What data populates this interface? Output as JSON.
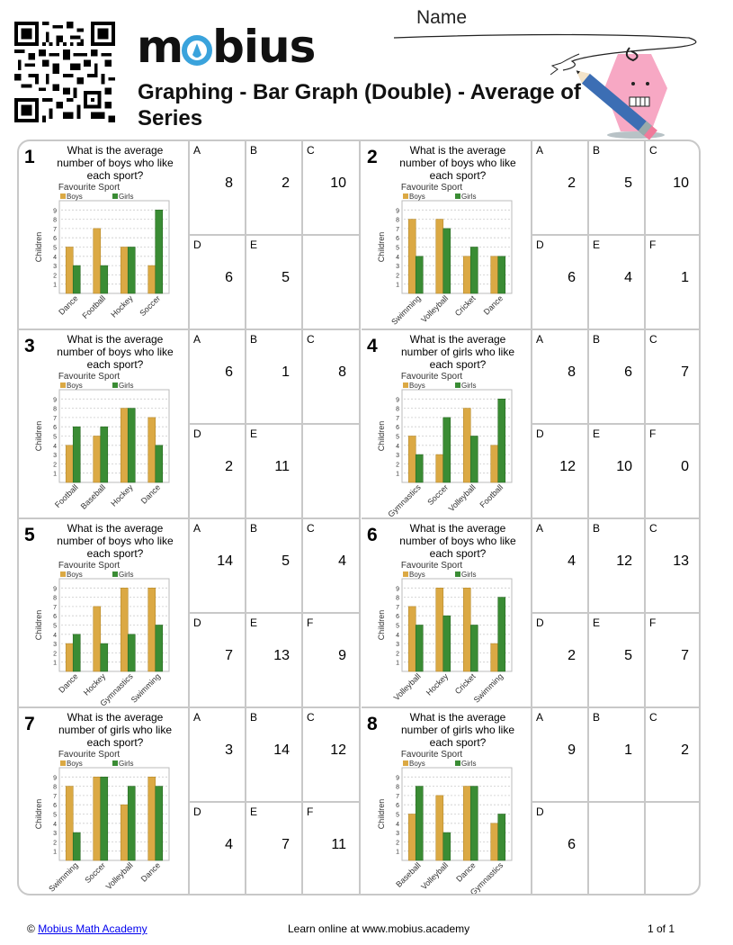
{
  "header": {
    "logo": "mobius",
    "title": "Graphing - Bar Graph (Double) - Average of Series",
    "name_label": "Name"
  },
  "colors": {
    "boys": "#dba944",
    "girls": "#3a8c34",
    "border": "#c8c8c8",
    "logo_accent": "#3aa3dc"
  },
  "legend": {
    "title": "Favourite Sport",
    "boys": "Boys",
    "girls": "Girls",
    "ylabel": "Children",
    "yticks": [
      "1",
      "2",
      "3",
      "4",
      "5",
      "6",
      "7",
      "8",
      "9"
    ]
  },
  "questions": [
    {
      "number": "1",
      "text": "What is the average number of boys who like each sport?",
      "answers": [
        {
          "letter": "A",
          "value": "8"
        },
        {
          "letter": "B",
          "value": "2"
        },
        {
          "letter": "C",
          "value": "10"
        },
        {
          "letter": "D",
          "value": "6"
        },
        {
          "letter": "E",
          "value": "5"
        },
        {
          "letter": "",
          "value": ""
        }
      ]
    },
    {
      "number": "2",
      "text": "What is the average number of boys who like each sport?",
      "answers": [
        {
          "letter": "A",
          "value": "2"
        },
        {
          "letter": "B",
          "value": "5"
        },
        {
          "letter": "C",
          "value": "10"
        },
        {
          "letter": "D",
          "value": "6"
        },
        {
          "letter": "E",
          "value": "4"
        },
        {
          "letter": "F",
          "value": "1"
        }
      ]
    },
    {
      "number": "3",
      "text": "What is the average number of boys who like each sport?",
      "answers": [
        {
          "letter": "A",
          "value": "6"
        },
        {
          "letter": "B",
          "value": "1"
        },
        {
          "letter": "C",
          "value": "8"
        },
        {
          "letter": "D",
          "value": "2"
        },
        {
          "letter": "E",
          "value": "11"
        },
        {
          "letter": "",
          "value": ""
        }
      ]
    },
    {
      "number": "4",
      "text": "What is the average number of girls who like each sport?",
      "answers": [
        {
          "letter": "A",
          "value": "8"
        },
        {
          "letter": "B",
          "value": "6"
        },
        {
          "letter": "C",
          "value": "7"
        },
        {
          "letter": "D",
          "value": "12"
        },
        {
          "letter": "E",
          "value": "10"
        },
        {
          "letter": "F",
          "value": "0"
        }
      ]
    },
    {
      "number": "5",
      "text": "What is the average number of boys who like each sport?",
      "answers": [
        {
          "letter": "A",
          "value": "14"
        },
        {
          "letter": "B",
          "value": "5"
        },
        {
          "letter": "C",
          "value": "4"
        },
        {
          "letter": "D",
          "value": "7"
        },
        {
          "letter": "E",
          "value": "13"
        },
        {
          "letter": "F",
          "value": "9"
        }
      ]
    },
    {
      "number": "6",
      "text": "What is the average number of boys who like each sport?",
      "answers": [
        {
          "letter": "A",
          "value": "4"
        },
        {
          "letter": "B",
          "value": "12"
        },
        {
          "letter": "C",
          "value": "13"
        },
        {
          "letter": "D",
          "value": "2"
        },
        {
          "letter": "E",
          "value": "5"
        },
        {
          "letter": "F",
          "value": "7"
        }
      ]
    },
    {
      "number": "7",
      "text": "What is the average number of girls who like each sport?",
      "answers": [
        {
          "letter": "A",
          "value": "3"
        },
        {
          "letter": "B",
          "value": "14"
        },
        {
          "letter": "C",
          "value": "12"
        },
        {
          "letter": "D",
          "value": "4"
        },
        {
          "letter": "E",
          "value": "7"
        },
        {
          "letter": "F",
          "value": "11"
        }
      ]
    },
    {
      "number": "8",
      "text": "What is the average number of girls who like each sport?",
      "answers": [
        {
          "letter": "A",
          "value": "9"
        },
        {
          "letter": "B",
          "value": "1"
        },
        {
          "letter": "C",
          "value": "2"
        },
        {
          "letter": "D",
          "value": "6"
        },
        {
          "letter": "",
          "value": ""
        },
        {
          "letter": "",
          "value": ""
        }
      ]
    }
  ],
  "chart_data": [
    {
      "type": "bar",
      "title": "Favourite Sport",
      "xlabel": "",
      "ylabel": "Children",
      "ylim": [
        0,
        10
      ],
      "grid": true,
      "legend_position": "top",
      "categories": [
        "Dance",
        "Football",
        "Hockey",
        "Soccer"
      ],
      "series": [
        {
          "name": "Boys",
          "values": [
            5,
            7,
            5,
            3
          ]
        },
        {
          "name": "Girls",
          "values": [
            3,
            3,
            5,
            9
          ]
        }
      ]
    },
    {
      "type": "bar",
      "title": "Favourite Sport",
      "xlabel": "",
      "ylabel": "Children",
      "ylim": [
        0,
        10
      ],
      "grid": true,
      "legend_position": "top",
      "categories": [
        "Swimming",
        "Volleyball",
        "Cricket",
        "Dance"
      ],
      "series": [
        {
          "name": "Boys",
          "values": [
            8,
            8,
            4,
            4
          ]
        },
        {
          "name": "Girls",
          "values": [
            4,
            7,
            5,
            4
          ]
        }
      ]
    },
    {
      "type": "bar",
      "title": "Favourite Sport",
      "xlabel": "",
      "ylabel": "Children",
      "ylim": [
        0,
        10
      ],
      "grid": true,
      "legend_position": "top",
      "categories": [
        "Football",
        "Baseball",
        "Hockey",
        "Dance"
      ],
      "series": [
        {
          "name": "Boys",
          "values": [
            4,
            5,
            8,
            7
          ]
        },
        {
          "name": "Girls",
          "values": [
            6,
            6,
            8,
            4
          ]
        }
      ]
    },
    {
      "type": "bar",
      "title": "Favourite Sport",
      "xlabel": "",
      "ylabel": "Children",
      "ylim": [
        0,
        10
      ],
      "grid": true,
      "legend_position": "top",
      "categories": [
        "Gymnastics",
        "Soccer",
        "Volleyball",
        "Football"
      ],
      "series": [
        {
          "name": "Boys",
          "values": [
            5,
            3,
            8,
            4
          ]
        },
        {
          "name": "Girls",
          "values": [
            3,
            7,
            5,
            9
          ]
        }
      ]
    },
    {
      "type": "bar",
      "title": "Favourite Sport",
      "xlabel": "",
      "ylabel": "Children",
      "ylim": [
        0,
        10
      ],
      "grid": true,
      "legend_position": "top",
      "categories": [
        "Dance",
        "Hockey",
        "Gymnastics",
        "Swimming"
      ],
      "series": [
        {
          "name": "Boys",
          "values": [
            3,
            7,
            9,
            9
          ]
        },
        {
          "name": "Girls",
          "values": [
            4,
            3,
            4,
            5
          ]
        }
      ]
    },
    {
      "type": "bar",
      "title": "Favourite Sport",
      "xlabel": "",
      "ylabel": "Children",
      "ylim": [
        0,
        10
      ],
      "grid": true,
      "legend_position": "top",
      "categories": [
        "Volleyball",
        "Hockey",
        "Cricket",
        "Swimming"
      ],
      "series": [
        {
          "name": "Boys",
          "values": [
            7,
            9,
            9,
            3
          ]
        },
        {
          "name": "Girls",
          "values": [
            5,
            6,
            5,
            8
          ]
        }
      ]
    },
    {
      "type": "bar",
      "title": "Favourite Sport",
      "xlabel": "",
      "ylabel": "Children",
      "ylim": [
        0,
        10
      ],
      "grid": true,
      "legend_position": "top",
      "categories": [
        "Swimming",
        "Soccer",
        "Volleyball",
        "Dance"
      ],
      "series": [
        {
          "name": "Boys",
          "values": [
            8,
            9,
            6,
            9
          ]
        },
        {
          "name": "Girls",
          "values": [
            3,
            9,
            8,
            8
          ]
        }
      ]
    },
    {
      "type": "bar",
      "title": "Favourite Sport",
      "xlabel": "",
      "ylabel": "Children",
      "ylim": [
        0,
        10
      ],
      "grid": true,
      "legend_position": "top",
      "categories": [
        "Baseball",
        "Volleyball",
        "Dance",
        "Gymnastics"
      ],
      "series": [
        {
          "name": "Boys",
          "values": [
            5,
            7,
            8,
            4
          ]
        },
        {
          "name": "Girls",
          "values": [
            8,
            3,
            8,
            5
          ]
        }
      ]
    }
  ],
  "footer": {
    "copyright_symbol": "©",
    "copyright_link": "Mobius Math Academy",
    "center": "Learn online at www.mobius.academy",
    "page": "1 of 1"
  }
}
